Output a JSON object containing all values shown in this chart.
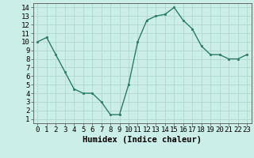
{
  "x": [
    0,
    1,
    2,
    3,
    4,
    5,
    6,
    7,
    8,
    9,
    10,
    11,
    12,
    13,
    14,
    15,
    16,
    17,
    18,
    19,
    20,
    21,
    22,
    23
  ],
  "y": [
    10.0,
    10.5,
    8.5,
    6.5,
    4.5,
    4.0,
    4.0,
    3.0,
    1.5,
    1.5,
    5.0,
    10.0,
    12.5,
    13.0,
    13.2,
    14.0,
    12.5,
    11.5,
    9.5,
    8.5,
    8.5,
    8.0,
    8.0,
    8.5
  ],
  "xlabel": "Humidex (Indice chaleur)",
  "ylim_min": 0.5,
  "ylim_max": 14.5,
  "xlim_min": -0.5,
  "xlim_max": 23.5,
  "yticks": [
    1,
    2,
    3,
    4,
    5,
    6,
    7,
    8,
    9,
    10,
    11,
    12,
    13,
    14
  ],
  "xticks": [
    0,
    1,
    2,
    3,
    4,
    5,
    6,
    7,
    8,
    9,
    10,
    11,
    12,
    13,
    14,
    15,
    16,
    17,
    18,
    19,
    20,
    21,
    22,
    23
  ],
  "line_color": "#2d7a6a",
  "bg_color": "#cceee8",
  "grid_color": "#b0d8d0",
  "xlabel_fontsize": 7.5,
  "tick_fontsize": 6.5
}
